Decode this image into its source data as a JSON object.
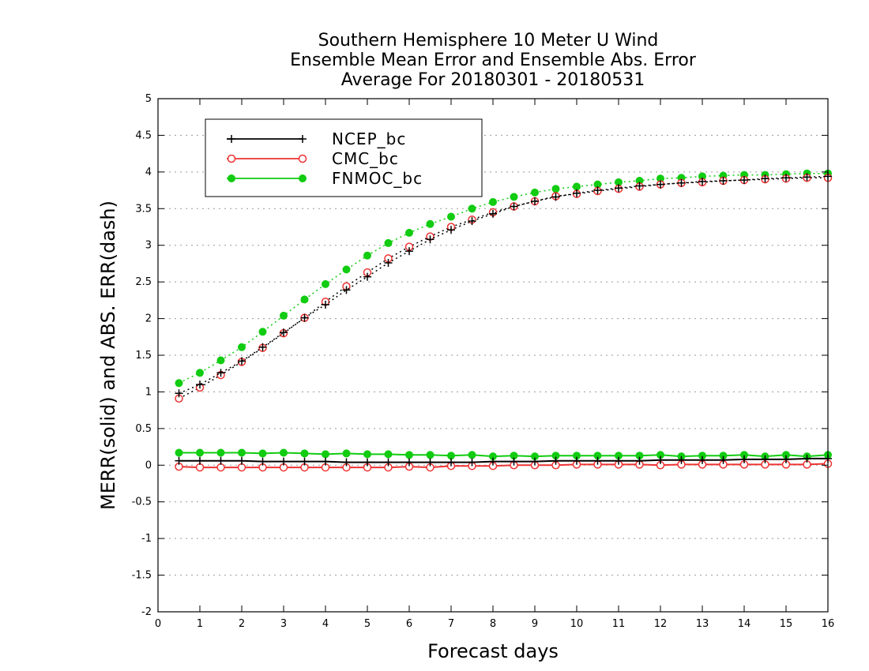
{
  "chart_data": {
    "type": "line",
    "title": [
      "Southern Hemisphere 10 Meter U Wind",
      "Ensemble Mean Error and Ensemble Abs. Error",
      "Average For 20180301 - 20180531"
    ],
    "xlabel": "Forecast days",
    "ylabel": "MERR(solid) and ABS. ERR(dash)",
    "xlim": [
      0,
      16
    ],
    "ylim": [
      -2,
      5
    ],
    "x_ticks": [
      "0",
      "1",
      "2",
      "3",
      "4",
      "5",
      "6",
      "7",
      "8",
      "9",
      "10",
      "11",
      "12",
      "13",
      "14",
      "15",
      "16"
    ],
    "y_ticks": [
      "-2",
      "-1.5",
      "-1",
      "-0.5",
      "0",
      "0.5",
      "1",
      "1.5",
      "2",
      "2.5",
      "3",
      "3.5",
      "4",
      "4.5",
      "5"
    ],
    "grid": "horizontal dotted",
    "legend_position": "top-left",
    "x": [
      0.5,
      1,
      1.5,
      2,
      2.5,
      3,
      3.5,
      4,
      4.5,
      5,
      5.5,
      6,
      6.5,
      7,
      7.5,
      8,
      8.5,
      9,
      9.5,
      10,
      10.5,
      11,
      11.5,
      12,
      12.5,
      13,
      13.5,
      14,
      14.5,
      15,
      15.5,
      16
    ],
    "series": [
      {
        "name": "NCEP_bc",
        "color": "#000000",
        "marker": "plus",
        "merr": [
          0.06,
          0.06,
          0.06,
          0.06,
          0.05,
          0.05,
          0.05,
          0.05,
          0.04,
          0.04,
          0.04,
          0.04,
          0.04,
          0.04,
          0.04,
          0.05,
          0.05,
          0.05,
          0.06,
          0.06,
          0.06,
          0.06,
          0.06,
          0.07,
          0.07,
          0.07,
          0.07,
          0.08,
          0.08,
          0.08,
          0.09,
          0.09
        ],
        "abs_err": [
          0.98,
          1.1,
          1.26,
          1.42,
          1.61,
          1.81,
          2.01,
          2.19,
          2.39,
          2.57,
          2.76,
          2.92,
          3.08,
          3.21,
          3.33,
          3.43,
          3.53,
          3.6,
          3.66,
          3.71,
          3.75,
          3.78,
          3.81,
          3.83,
          3.85,
          3.87,
          3.88,
          3.89,
          3.91,
          3.92,
          3.93,
          3.94
        ]
      },
      {
        "name": "CMC_bc",
        "color": "#ee3333",
        "marker": "open-circle",
        "merr": [
          -0.02,
          -0.03,
          -0.03,
          -0.03,
          -0.03,
          -0.03,
          -0.03,
          -0.03,
          -0.03,
          -0.03,
          -0.03,
          -0.02,
          -0.03,
          -0.01,
          -0.01,
          -0.01,
          0.0,
          0.0,
          0.0,
          0.01,
          0.01,
          0.01,
          0.01,
          0.0,
          0.01,
          0.01,
          0.01,
          0.01,
          0.01,
          0.01,
          0.01,
          0.02
        ],
        "abs_err": [
          0.91,
          1.06,
          1.23,
          1.41,
          1.6,
          1.8,
          2.01,
          2.23,
          2.44,
          2.63,
          2.82,
          2.98,
          3.12,
          3.25,
          3.35,
          3.45,
          3.53,
          3.6,
          3.67,
          3.7,
          3.74,
          3.77,
          3.8,
          3.83,
          3.85,
          3.86,
          3.88,
          3.89,
          3.9,
          3.91,
          3.92,
          3.92
        ]
      },
      {
        "name": "FNMOC_bc",
        "color": "#11cc11",
        "marker": "filled-circle",
        "merr": [
          0.17,
          0.17,
          0.17,
          0.17,
          0.16,
          0.17,
          0.16,
          0.15,
          0.16,
          0.15,
          0.15,
          0.14,
          0.14,
          0.13,
          0.14,
          0.12,
          0.13,
          0.12,
          0.13,
          0.13,
          0.13,
          0.13,
          0.13,
          0.14,
          0.12,
          0.13,
          0.13,
          0.14,
          0.12,
          0.14,
          0.12,
          0.14
        ],
        "abs_err": [
          1.12,
          1.26,
          1.43,
          1.61,
          1.82,
          2.04,
          2.26,
          2.47,
          2.67,
          2.86,
          3.03,
          3.17,
          3.29,
          3.39,
          3.5,
          3.59,
          3.66,
          3.72,
          3.77,
          3.8,
          3.83,
          3.86,
          3.88,
          3.91,
          3.92,
          3.94,
          3.95,
          3.96,
          3.96,
          3.97,
          3.98,
          3.98
        ]
      }
    ]
  }
}
